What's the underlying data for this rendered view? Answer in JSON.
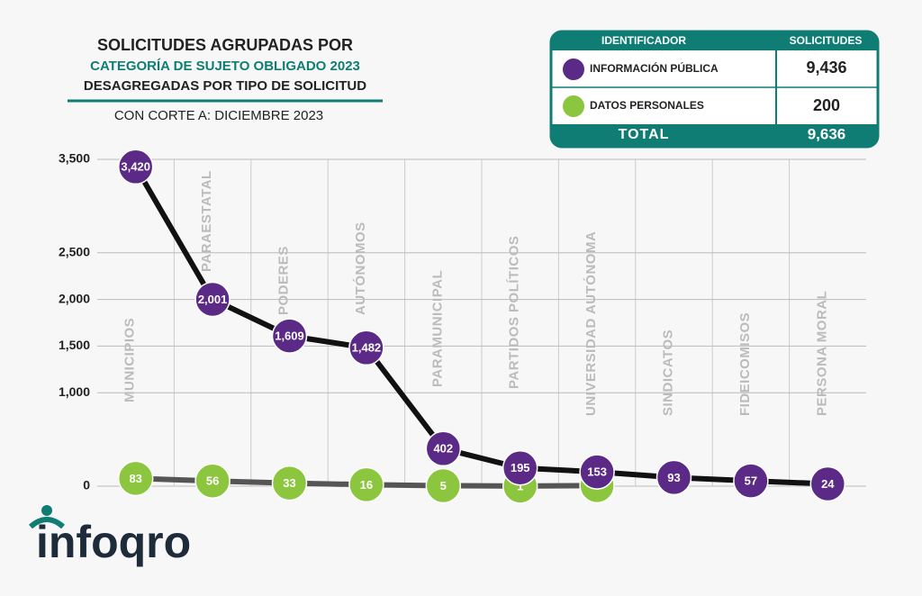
{
  "chart_data": {
    "type": "line",
    "title_lines": [
      "SOLICITUDES AGRUPADAS POR",
      "CATEGORÍA DE SUJETO OBLIGADO 2023",
      "DESAGREGADAS POR TIPO DE SOLICITUD"
    ],
    "subtitle": "CON CORTE A: DICIEMBRE 2023",
    "categories": [
      "MUNICIPIOS",
      "PARAESTATAL",
      "PODERES",
      "AUTÓNOMOS",
      "PARAMUNICIPAL",
      "PARTIDOS POLÍTICOS",
      "UNIVERSIDAD AUTÓNOMA",
      "SINDICATOS",
      "FIDEICOMISOS",
      "PERSONA MORAL"
    ],
    "series": [
      {
        "name": "INFORMACIÓN PÚBLICA",
        "color": "#5b2a86",
        "line_color": "#111111",
        "values": [
          3420,
          2001,
          1609,
          1482,
          402,
          195,
          153,
          93,
          57,
          24
        ],
        "value_labels": [
          "3,420",
          "2,001",
          "1,609",
          "1,482",
          "402",
          "195",
          "153",
          "93",
          "57",
          "24"
        ]
      },
      {
        "name": "DATOS PERSONALES",
        "color": "#8cc63f",
        "line_color": "#555555",
        "values": [
          83,
          56,
          33,
          16,
          5,
          1,
          6,
          null,
          null,
          null
        ]
      }
    ],
    "ylim": [
      0,
      3500
    ],
    "yticks": [
      0,
      {
        "value": 1000,
        "label": "1,000"
      },
      {
        "value": 1500,
        "label": "1,500"
      },
      {
        "value": 2000,
        "label": "2,000"
      },
      {
        "value": 2500,
        "label": "2,500"
      },
      {
        "value": 3500,
        "label": "3,500"
      }
    ],
    "grid": true,
    "table": {
      "header": [
        "IDENTIFICADOR",
        "SOLICITUDES"
      ],
      "rows": [
        [
          "9,436"
        ],
        [
          "200"
        ]
      ],
      "total": [
        "TOTAL",
        "9,636"
      ]
    },
    "logo": "infoqro"
  }
}
